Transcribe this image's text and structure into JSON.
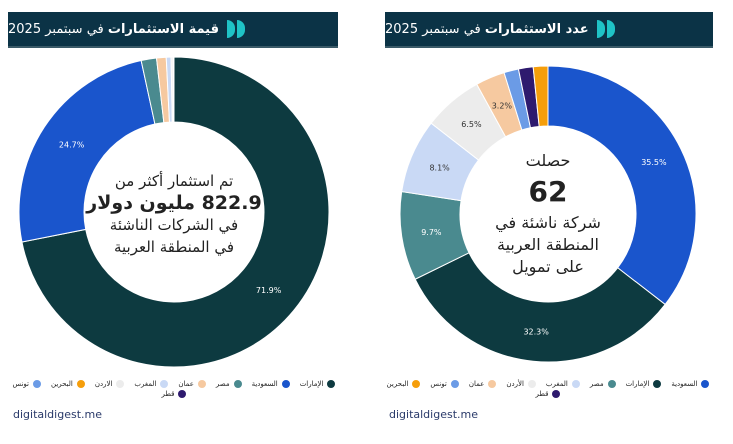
{
  "colors": {
    "header": "#0b3346",
    "الإمارات": "#0d3a40",
    "السعودية": "#1a55cc",
    "مصر": "#4a8a8f",
    "عمان": "#f6c9a0",
    "المغرب": "#c9d9f5",
    "الاردن": "#ececec",
    "البحرين": "#f59e0b",
    "تونس": "#6b9be6",
    "قطر": "#2e1a6e"
  },
  "source": "digitaldigest.me",
  "chart_data": [
    {
      "type": "pie",
      "title_bold": "قيمة الاستثمارات",
      "title_rest": "في سبتمبر 2025",
      "center": {
        "line1": "تم استثمار أكثر من",
        "big": "822.9 مليون دولار",
        "line3": "في الشركات الناشئة",
        "line4": "في المنطقة العربية"
      },
      "slices": [
        {
          "label": "الإمارات",
          "value": 71.9,
          "shown": "71.9%"
        },
        {
          "label": "السعودية",
          "value": 24.7,
          "shown": "24.7%"
        },
        {
          "label": "مصر",
          "value": 1.6
        },
        {
          "label": "عمان",
          "value": 1.0
        },
        {
          "label": "المغرب",
          "value": 0.5
        },
        {
          "label": "الاردن",
          "value": 0.2
        },
        {
          "label": "البحرين",
          "value": 0.1
        },
        {
          "label": "تونس",
          "value": 0
        },
        {
          "label": "قطر",
          "value": 0
        }
      ],
      "legend": [
        "الإمارات",
        "السعودية",
        "مصر",
        "عمان",
        "المغرب",
        "الاردن",
        "البحرين",
        "تونس",
        "قطر"
      ]
    },
    {
      "type": "pie",
      "title_bold": "عدد الاستثمارات",
      "title_rest": "في سبتمبر 2025",
      "center": {
        "line1": "حصلت",
        "big": "62",
        "line3": "شركة ناشئة في",
        "line4": "المنطقة العربية",
        "line5": "على تمويل"
      },
      "slices": [
        {
          "label": "السعودية",
          "value": 35.5,
          "shown": "35.5%"
        },
        {
          "label": "الإمارات",
          "value": 32.3,
          "shown": "32.3%"
        },
        {
          "label": "مصر",
          "value": 9.7,
          "shown": "9.7%"
        },
        {
          "label": "المغرب",
          "value": 8.1,
          "shown": "8.1%"
        },
        {
          "label": "الاردن",
          "value": 6.5,
          "shown": "6.5%"
        },
        {
          "label": "عمان",
          "value": 3.2,
          "shown": "3.2%"
        },
        {
          "label": "تونس",
          "value": 1.6
        },
        {
          "label": "قطر",
          "value": 1.6
        },
        {
          "label": "البحرين",
          "value": 1.6
        }
      ],
      "legend": [
        "السعودية",
        "الإمارات",
        "مصر",
        "المغرب",
        "الأردن",
        "عمان",
        "تونس",
        "البحرين",
        "قطر"
      ]
    }
  ]
}
